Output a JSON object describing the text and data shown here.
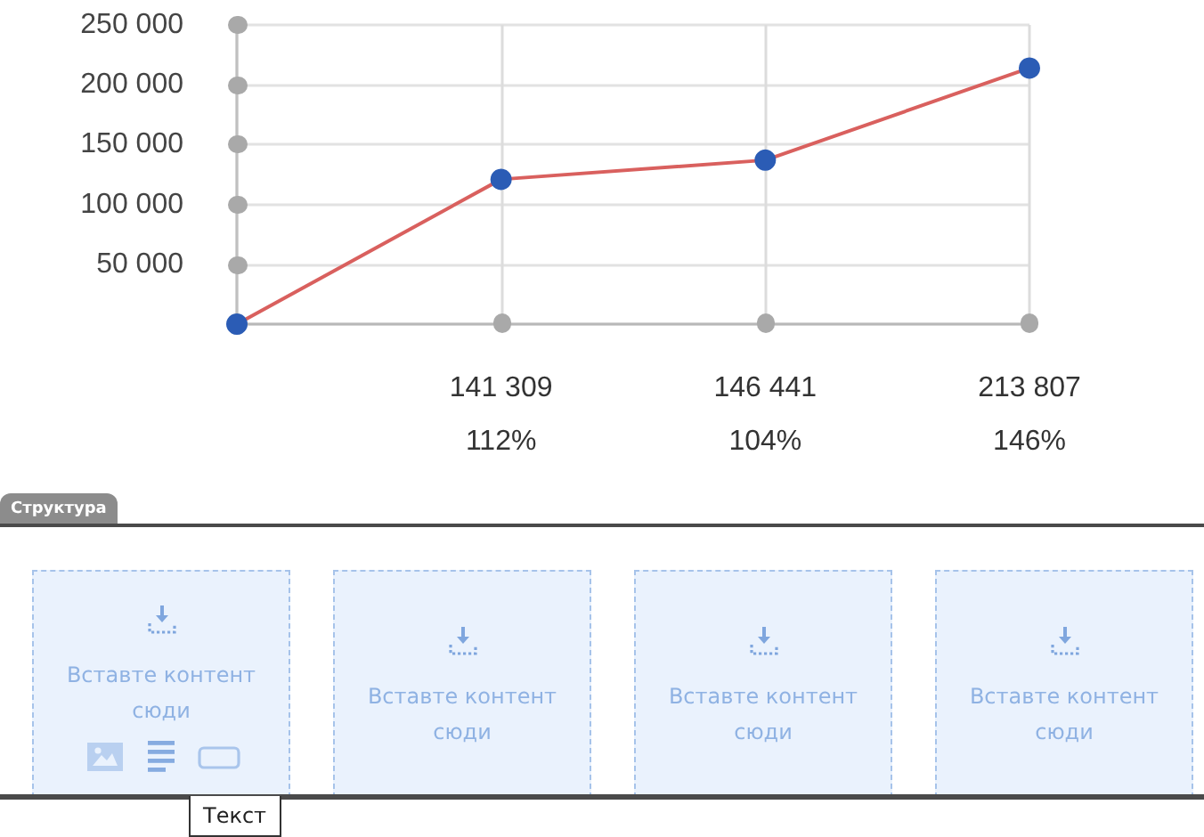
{
  "chart_data": {
    "type": "line",
    "categories": [
      null,
      "141 309\n112%",
      "146 441\n104%",
      "213 807\n146%"
    ],
    "series": [
      {
        "color": "#d9605e",
        "colors": [
          "#2b5cb5",
          "#2b5cb5",
          "#2b5cb5",
          "#2b5cb5"
        ],
        "values": [
          0,
          121000,
          137000,
          214000
        ]
      }
    ],
    "ylim": [
      0,
      250000
    ],
    "yticks": [
      {
        "value": 0,
        "label": null
      },
      {
        "value": 50000,
        "label": "50 000"
      },
      {
        "value": 100000,
        "label": "100 000"
      },
      {
        "value": 150000,
        "label": "150 000"
      },
      {
        "value": 200000,
        "label": "200 000"
      },
      {
        "value": 250000,
        "label": "250 000"
      }
    ],
    "grid": true,
    "marker": "circle",
    "line_style": "solid",
    "annotations": [
      "Структура",
      "Вставте контент сюди",
      "Вставте контент сюди",
      "Вставте контент сюди",
      "Вставте контент сюди",
      "Текст"
    ]
  }
}
